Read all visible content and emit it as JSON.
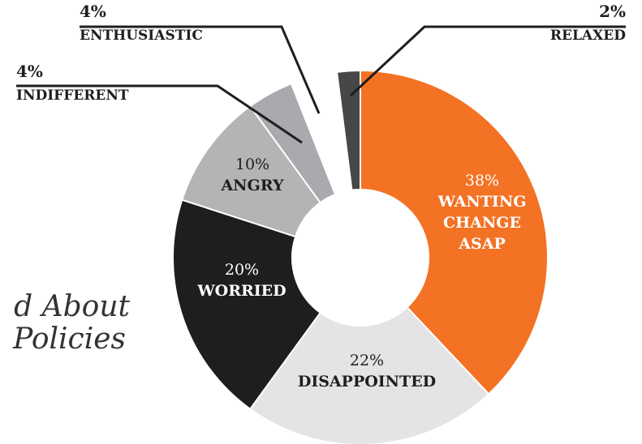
{
  "chart_data": {
    "type": "pie",
    "title": [
      "d About",
      "Policies"
    ],
    "categories": [
      "WANTING CHANGE ASAP",
      "DISAPPOINTED",
      "WORRIED",
      "ANGRY",
      "INDIFFERENT",
      "ENTHUSIASTIC",
      "RELAXED"
    ],
    "values": [
      38,
      22,
      20,
      10,
      4,
      4,
      2
    ],
    "value_labels": [
      "38%",
      "22%",
      "20%",
      "10%",
      "4%",
      "4%",
      "2%"
    ],
    "colors": [
      "#f37224",
      "#e4e4e6",
      "#1e1e1e",
      "#b4b4b4",
      "#a9aaae",
      "#ffffff",
      "#474747"
    ],
    "donut": true
  }
}
